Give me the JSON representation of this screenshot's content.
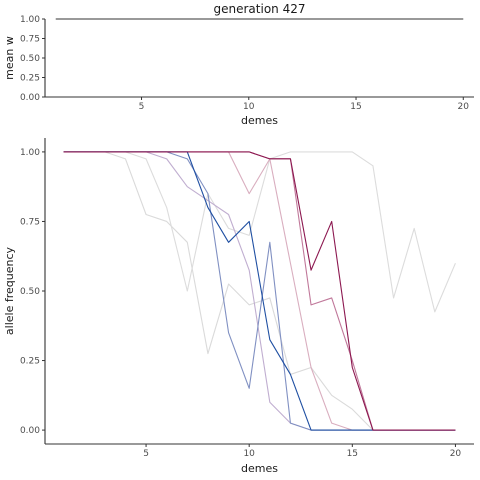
{
  "chart_data": [
    {
      "type": "line",
      "title": "generation 427",
      "xlabel": "demes",
      "ylabel": "mean w",
      "xlim": [
        0.5,
        20.5
      ],
      "ylim": [
        0,
        1
      ],
      "xticks": [
        5,
        10,
        15,
        20
      ],
      "xtick_labels": [
        "5",
        "10",
        "15",
        "20"
      ],
      "yticks": [
        0,
        0.25,
        0.5,
        0.75,
        1
      ],
      "ytick_labels": [
        "0.00",
        "0.25",
        "0.50",
        "0.75",
        "1.00"
      ],
      "grid": false,
      "series": [
        {
          "color": "#333333",
          "x": [
            1,
            20
          ],
          "values": [
            1.0,
            1.0
          ]
        }
      ]
    },
    {
      "type": "line",
      "title": "",
      "xlabel": "demes",
      "ylabel": "allele frequency",
      "xlim": [
        0.1,
        20.9
      ],
      "ylim": [
        -0.05,
        1.05
      ],
      "xticks": [
        5,
        10,
        15,
        20
      ],
      "xtick_labels": [
        "5",
        "10",
        "15",
        "20"
      ],
      "yticks": [
        0,
        0.25,
        0.5,
        0.75,
        1
      ],
      "ytick_labels": [
        "0.00",
        "0.25",
        "0.50",
        "0.75",
        "1.00"
      ],
      "grid": false,
      "x": [
        1,
        2,
        3,
        4,
        5,
        6,
        7,
        8,
        9,
        10,
        11,
        12,
        13,
        14,
        15,
        16,
        17,
        18,
        19,
        20
      ],
      "series": [
        {
          "color": "#dadada",
          "values": [
            1.0,
            1.0,
            1.0,
            0.975,
            0.775,
            0.75,
            0.675,
            0.275,
            0.525,
            0.45,
            0.475,
            0.2,
            0.225,
            0.125,
            0.075,
            0.0,
            0.0,
            0.0,
            0.0,
            0.0
          ]
        },
        {
          "color": "#dcdcdc",
          "values": [
            1.0,
            1.0,
            1.0,
            1.0,
            0.975,
            0.8,
            0.5,
            0.85,
            0.725,
            0.7,
            0.975,
            1.0,
            1.0,
            1.0,
            1.0,
            0.95,
            0.475,
            0.725,
            0.425,
            0.6
          ]
        },
        {
          "color": "#c0aed0",
          "values": [
            1.0,
            1.0,
            1.0,
            1.0,
            1.0,
            0.975,
            0.875,
            0.825,
            0.775,
            0.575,
            0.1,
            0.025,
            0.0,
            0.0,
            0.0,
            0.0,
            0.0,
            0.0,
            0.0,
            0.0
          ]
        },
        {
          "color": "#d9aebf",
          "values": [
            1.0,
            1.0,
            1.0,
            1.0,
            1.0,
            1.0,
            1.0,
            1.0,
            1.0,
            0.85,
            0.975,
            0.6,
            0.225,
            0.025,
            0.0,
            0.0,
            0.0,
            0.0,
            0.0,
            0.0
          ]
        },
        {
          "color": "#8090c2",
          "values": [
            1.0,
            1.0,
            1.0,
            1.0,
            1.0,
            1.0,
            0.975,
            0.85,
            0.35,
            0.15,
            0.675,
            0.025,
            0.0,
            0.0,
            0.0,
            0.0,
            0.0,
            0.0,
            0.0,
            0.0
          ]
        },
        {
          "color": "#c0789a",
          "values": [
            1.0,
            1.0,
            1.0,
            1.0,
            1.0,
            1.0,
            1.0,
            1.0,
            1.0,
            1.0,
            0.975,
            0.975,
            0.45,
            0.475,
            0.25,
            0.0,
            0.0,
            0.0,
            0.0,
            0.0
          ]
        },
        {
          "color": "#1f4fa2",
          "values": [
            1.0,
            1.0,
            1.0,
            1.0,
            1.0,
            1.0,
            1.0,
            0.8,
            0.675,
            0.75,
            0.325,
            0.2,
            0.0,
            0.0,
            0.0,
            0.0,
            0.0,
            0.0,
            0.0,
            0.0
          ]
        },
        {
          "color": "#8c1850",
          "values": [
            1.0,
            1.0,
            1.0,
            1.0,
            1.0,
            1.0,
            1.0,
            1.0,
            1.0,
            1.0,
            0.975,
            0.975,
            0.575,
            0.75,
            0.225,
            0.0,
            0.0,
            0.0,
            0.0,
            0.0
          ]
        }
      ]
    }
  ]
}
